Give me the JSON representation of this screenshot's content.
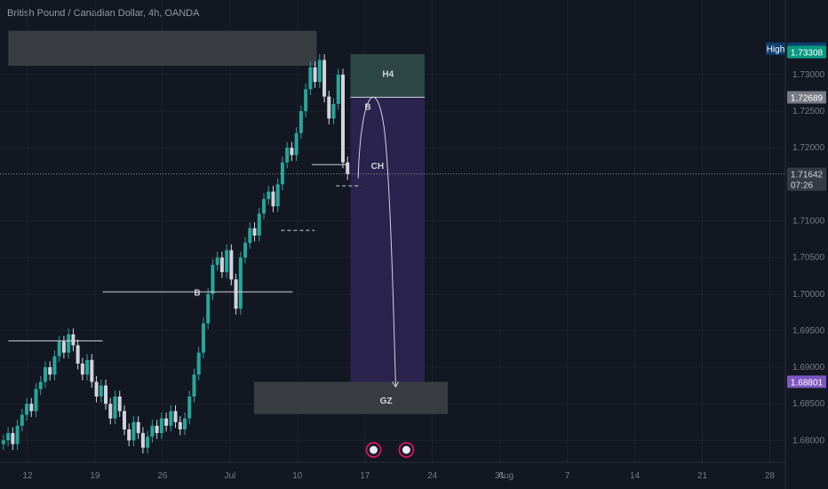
{
  "header": {
    "title": "British Pound / Canadian Dollar, 4h, OANDA"
  },
  "colors": {
    "background": "#131722",
    "candle_up": "#26a69a",
    "candle_down": "#d1d4dc",
    "grid": "#1e222d",
    "zone_gray": "#3b3e46",
    "zone_h4": "#2d4a48",
    "zone_target": "#2a2450",
    "high_tag": "#0c3d6e",
    "last_tag": "#089981",
    "level_tag": "#787b86",
    "target_tag": "#7e57c2"
  },
  "chart_data": {
    "type": "candlestick",
    "y_range": [
      1.677,
      1.738
    ],
    "y_ticks": [
      "1.73000",
      "1.72500",
      "1.72000",
      "1.71000",
      "1.70500",
      "1.70000",
      "1.69500",
      "1.69000",
      "1.68500",
      "1.68000"
    ],
    "y_tick_values": [
      1.73,
      1.725,
      1.72,
      1.71,
      1.705,
      1.7,
      1.695,
      1.69,
      1.685,
      1.68
    ],
    "x_ticks": [
      "12",
      "19",
      "26",
      "Jul",
      "10",
      "17",
      "24",
      "31",
      "Aug",
      "7",
      "14",
      "21",
      "28"
    ],
    "x_tick_days": [
      0,
      7,
      14,
      21,
      28,
      35,
      42,
      49,
      49.6,
      56,
      63,
      70,
      77
    ],
    "price_tags": [
      {
        "label": "High",
        "value": "1.73356",
        "price": 1.73356,
        "kind": "high"
      },
      {
        "value": "1.73308",
        "price": 1.73308,
        "kind": "last"
      },
      {
        "value": "1.72689",
        "price": 1.72689,
        "kind": "level"
      },
      {
        "value": "1.71642",
        "extra": "07:26",
        "price": 1.71642,
        "kind": "current"
      },
      {
        "value": "1.68801",
        "price": 1.68801,
        "kind": "target"
      }
    ],
    "zones": [
      {
        "label": "",
        "kind": "gray",
        "day_from": -2,
        "day_to": 30,
        "price_top": 1.736,
        "price_bottom": 1.7312
      },
      {
        "label": "H4",
        "kind": "h4",
        "day_from": 33.5,
        "day_to": 41.2,
        "price_top": 1.7328,
        "price_bottom": 1.7269
      },
      {
        "label": "",
        "kind": "target",
        "day_from": 33.5,
        "day_to": 41.2,
        "price_top": 1.7269,
        "price_bottom": 1.688
      },
      {
        "label": "GZ",
        "kind": "gray",
        "day_from": 23.5,
        "day_to": 43.6,
        "price_top": 1.688,
        "price_bottom": 1.6836
      }
    ],
    "annotations": [
      {
        "text": "B",
        "day": 17.6,
        "price": 1.7003
      },
      {
        "text": "B",
        "day": 35.3,
        "price": 1.7257
      },
      {
        "text": "CH",
        "day": 36.3,
        "price": 1.7176
      },
      {
        "text": "H4",
        "day": 37.4,
        "price": 1.7302
      },
      {
        "text": "GZ",
        "day": 37.2,
        "price": 1.6855
      }
    ],
    "level_lines": [
      {
        "day_from": -2,
        "day_to": 7.8,
        "price": 1.6936,
        "style": "solid"
      },
      {
        "day_from": 7.8,
        "day_to": 27.5,
        "price": 1.7003,
        "style": "solid"
      },
      {
        "day_from": 29.5,
        "day_to": 33.3,
        "price": 1.7177,
        "style": "solid"
      },
      {
        "day_from": 26.3,
        "day_to": 29.8,
        "price": 1.7087,
        "style": "dashed"
      },
      {
        "day_from": 32.0,
        "day_to": 34.6,
        "price": 1.7148,
        "style": "dashed"
      }
    ],
    "closes": [
      1.68,
      1.681,
      1.6795,
      1.682,
      1.6835,
      1.685,
      1.684,
      1.687,
      1.688,
      1.69,
      1.689,
      1.6915,
      1.6935,
      1.692,
      1.6945,
      1.693,
      1.6905,
      1.689,
      1.691,
      1.688,
      1.686,
      1.6875,
      1.685,
      1.683,
      1.686,
      1.684,
      1.6815,
      1.68,
      1.6825,
      1.681,
      1.679,
      1.6805,
      1.682,
      1.681,
      1.683,
      1.682,
      1.684,
      1.6825,
      1.6815,
      1.683,
      1.686,
      1.689,
      1.692,
      1.696,
      1.7,
      1.704,
      1.705,
      1.703,
      1.706,
      1.702,
      1.698,
      1.705,
      1.707,
      1.709,
      1.708,
      1.711,
      1.713,
      1.714,
      1.712,
      1.715,
      1.718,
      1.72,
      1.719,
      1.722,
      1.725,
      1.728,
      1.731,
      1.729,
      1.732,
      1.727,
      1.724,
      1.726,
      1.73,
      1.718,
      1.7164
    ]
  }
}
